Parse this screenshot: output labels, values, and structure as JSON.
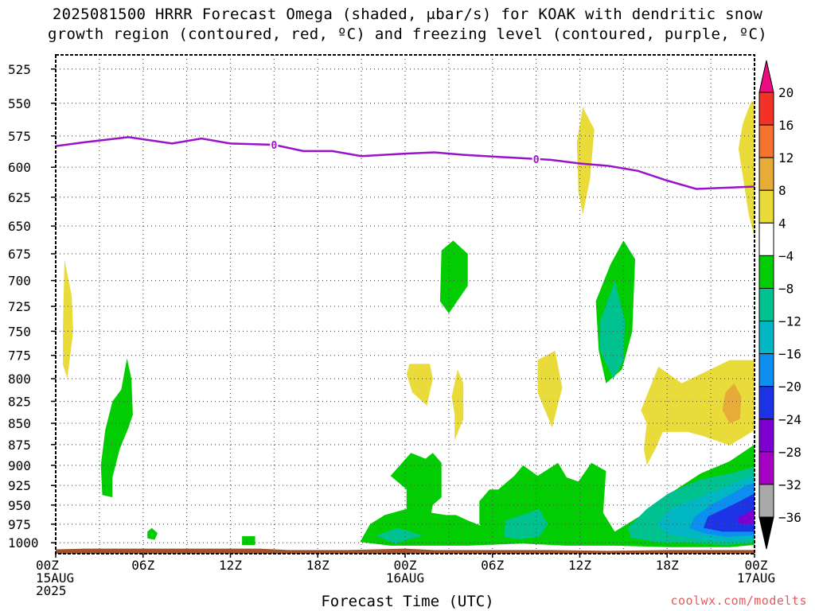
{
  "title_line1": "2025081500 HRRR Forecast Omega (shaded, μbar/s) for KOAK with dendritic snow",
  "title_line2": "growth region (contoured, red, ºC) and freezing level (contoured, purple, ºC)",
  "x_axis_title": "Forecast Time (UTC)",
  "credit": "coolwx.com/modelts",
  "chart_data": {
    "type": "heatmap",
    "title": "2025081500 HRRR Forecast Omega (shaded, μbar/s) for KOAK",
    "xlabel": "Forecast Time (UTC)",
    "ylabel": "",
    "x_range_hours": [
      0,
      48
    ],
    "y_range_hpa": [
      1015,
      515
    ],
    "y_scale": "log-pressure (inverted)",
    "grid": true,
    "y_ticks": [
      525,
      550,
      575,
      600,
      625,
      650,
      675,
      700,
      725,
      750,
      775,
      800,
      825,
      850,
      875,
      900,
      925,
      950,
      975,
      1000
    ],
    "x_ticks": [
      {
        "hour": 0,
        "lines": [
          "00Z",
          "15AUG",
          "2025"
        ]
      },
      {
        "hour": 6,
        "lines": [
          "06Z"
        ]
      },
      {
        "hour": 12,
        "lines": [
          "12Z"
        ]
      },
      {
        "hour": 18,
        "lines": [
          "18Z"
        ]
      },
      {
        "hour": 24,
        "lines": [
          "00Z",
          "16AUG"
        ]
      },
      {
        "hour": 30,
        "lines": [
          "06Z"
        ]
      },
      {
        "hour": 36,
        "lines": [
          "12Z"
        ]
      },
      {
        "hour": 42,
        "lines": [
          "18Z"
        ]
      },
      {
        "hour": 48,
        "lines": [
          "00Z",
          "17AUG"
        ]
      }
    ],
    "colorbar": {
      "labels": [
        "20",
        "16",
        "12",
        "8",
        "4",
        "−4",
        "−8",
        "−12",
        "−16",
        "−20",
        "−24",
        "−28",
        "−32",
        "−36"
      ],
      "colors": [
        "#ee0a7f",
        "#f23226",
        "#f5732e",
        "#e7ac38",
        "#e9dc3a",
        "#ffffff",
        "#02cd02",
        "#00c190",
        "#00b7c3",
        "#0d8ef1",
        "#1d33e6",
        "#7d00d0",
        "#a600c4",
        "#a9a9a9",
        "#000000"
      ]
    },
    "freezing_level": {
      "label": "0",
      "color": "#9a13c9",
      "points": [
        [
          0,
          583
        ],
        [
          2,
          580
        ],
        [
          5,
          576
        ],
        [
          8,
          581
        ],
        [
          10,
          577
        ],
        [
          12,
          581
        ],
        [
          15,
          582
        ],
        [
          17,
          587
        ],
        [
          19,
          587
        ],
        [
          21,
          591
        ],
        [
          24,
          589
        ],
        [
          26,
          588
        ],
        [
          28,
          590
        ],
        [
          31,
          592
        ],
        [
          34,
          594
        ],
        [
          36,
          597
        ],
        [
          38,
          599
        ],
        [
          40,
          603
        ],
        [
          42,
          611
        ],
        [
          44,
          618
        ],
        [
          46,
          617
        ],
        [
          48,
          616
        ]
      ],
      "label_hours": [
        15,
        33
      ]
    },
    "omega_regions": [
      {
        "level": 4,
        "color": "#e9dc3a",
        "points": [
          [
            0.6,
            680
          ],
          [
            1.1,
            715
          ],
          [
            1.2,
            750
          ],
          [
            0.8,
            800
          ],
          [
            0.5,
            785
          ],
          [
            0.5,
            745
          ]
        ]
      },
      {
        "level": 4,
        "color": "#e9dc3a",
        "points": [
          [
            36.2,
            553
          ],
          [
            37.0,
            570
          ],
          [
            36.7,
            610
          ],
          [
            36.2,
            640
          ],
          [
            35.9,
            620
          ],
          [
            35.8,
            580
          ]
        ]
      },
      {
        "level": 4,
        "color": "#e9dc3a",
        "points": [
          [
            47.8,
            548
          ],
          [
            48,
            552
          ],
          [
            48,
            660
          ],
          [
            47.6,
            640
          ],
          [
            46.9,
            585
          ],
          [
            47.2,
            565
          ]
        ]
      },
      {
        "level": 4,
        "color": "#e9dc3a",
        "points": [
          [
            34.3,
            770
          ],
          [
            34.8,
            810
          ],
          [
            34.1,
            855
          ],
          [
            33.1,
            815
          ],
          [
            33.1,
            780
          ]
        ]
      },
      {
        "level": 4,
        "color": "#e9dc3a",
        "points": [
          [
            24.3,
            784
          ],
          [
            25.7,
            784
          ],
          [
            25.9,
            800
          ],
          [
            25.5,
            830
          ],
          [
            24.5,
            815
          ],
          [
            24.1,
            795
          ]
        ]
      },
      {
        "level": 4,
        "color": "#e9dc3a",
        "points": [
          [
            27.6,
            790
          ],
          [
            28.0,
            805
          ],
          [
            28.0,
            845
          ],
          [
            27.4,
            870
          ],
          [
            27.4,
            840
          ],
          [
            27.2,
            820
          ]
        ]
      },
      {
        "level": 4,
        "color": "#e9dc3a",
        "points": [
          [
            41.4,
            787
          ],
          [
            43.0,
            805
          ],
          [
            44.3,
            795
          ],
          [
            46.3,
            780
          ],
          [
            48,
            780
          ],
          [
            48,
            858
          ],
          [
            46.3,
            876
          ],
          [
            44.5,
            865
          ],
          [
            43.4,
            860
          ],
          [
            42.2,
            860
          ],
          [
            41.7,
            860
          ],
          [
            41.2,
            880
          ],
          [
            40.6,
            900
          ],
          [
            40.4,
            880
          ],
          [
            40.6,
            850
          ],
          [
            40.2,
            835
          ]
        ]
      },
      {
        "level": 8,
        "color": "#e7ac38",
        "points": [
          [
            46.6,
            805
          ],
          [
            47.1,
            820
          ],
          [
            47.0,
            845
          ],
          [
            46.3,
            850
          ],
          [
            45.8,
            835
          ],
          [
            46.0,
            815
          ]
        ]
      },
      {
        "level": -4,
        "color": "#02cd02",
        "points": [
          [
            4.9,
            778
          ],
          [
            5.2,
            800
          ],
          [
            5.3,
            840
          ],
          [
            5.0,
            855
          ],
          [
            4.4,
            880
          ],
          [
            3.9,
            915
          ],
          [
            3.9,
            940
          ],
          [
            3.2,
            937
          ],
          [
            3.1,
            900
          ],
          [
            3.4,
            858
          ],
          [
            3.9,
            825
          ],
          [
            4.5,
            812
          ]
        ]
      },
      {
        "level": -4,
        "color": "#02cd02",
        "points": [
          [
            27.3,
            663
          ],
          [
            28.3,
            675
          ],
          [
            28.3,
            705
          ],
          [
            27.0,
            732
          ],
          [
            26.4,
            720
          ],
          [
            26.5,
            672
          ]
        ]
      },
      {
        "level": -4,
        "color": "#02cd02",
        "points": [
          [
            39.0,
            663
          ],
          [
            39.8,
            680
          ],
          [
            39.6,
            750
          ],
          [
            38.9,
            790
          ],
          [
            37.8,
            805
          ],
          [
            37.3,
            770
          ],
          [
            37.1,
            720
          ],
          [
            38.1,
            685
          ]
        ]
      },
      {
        "level": -4,
        "color": "#02cd02",
        "points": [
          [
            6.6,
            980
          ],
          [
            7.0,
            987
          ],
          [
            6.8,
            996
          ],
          [
            6.3,
            994
          ],
          [
            6.3,
            985
          ]
        ]
      },
      {
        "level": -4,
        "color": "#02cd02",
        "points": [
          [
            12.8,
            991
          ],
          [
            13.7,
            991
          ],
          [
            13.7,
            1003
          ],
          [
            12.8,
            1003
          ]
        ]
      },
      {
        "level": -4,
        "color": "#02cd02",
        "points": [
          [
            48,
            875
          ],
          [
            48,
            1003
          ],
          [
            46.3,
            1006
          ],
          [
            42.1,
            1006
          ],
          [
            38.4,
            1004
          ],
          [
            35.0,
            1004
          ],
          [
            32.1,
            1001
          ],
          [
            28.3,
            1004
          ],
          [
            25.7,
            1004
          ],
          [
            23.0,
            1004
          ],
          [
            20.9,
            999
          ],
          [
            21.6,
            975
          ],
          [
            22.6,
            963
          ],
          [
            24.1,
            955
          ],
          [
            24.1,
            930
          ],
          [
            23.0,
            913
          ],
          [
            24.4,
            885
          ],
          [
            25.4,
            892
          ],
          [
            25.9,
            885
          ],
          [
            26.5,
            897
          ],
          [
            26.5,
            940
          ],
          [
            25.9,
            950
          ],
          [
            25.8,
            960
          ],
          [
            26.8,
            963
          ],
          [
            27.5,
            963
          ],
          [
            28.3,
            970
          ],
          [
            29.2,
            977
          ],
          [
            29.1,
            975
          ],
          [
            29.1,
            945
          ],
          [
            29.8,
            930
          ],
          [
            30.4,
            930
          ],
          [
            31.5,
            913
          ],
          [
            32.1,
            900
          ],
          [
            33.1,
            913
          ],
          [
            34.5,
            897
          ],
          [
            35.1,
            915
          ],
          [
            35.9,
            920
          ],
          [
            36.8,
            897
          ],
          [
            37.8,
            907
          ],
          [
            37.6,
            960
          ],
          [
            38.4,
            985
          ],
          [
            40.5,
            960
          ],
          [
            42.2,
            935
          ],
          [
            44.3,
            910
          ],
          [
            46.3,
            895
          ]
        ]
      },
      {
        "level": -8,
        "color": "#00c190",
        "points": [
          [
            38.4,
            700
          ],
          [
            39.1,
            740
          ],
          [
            39.0,
            780
          ],
          [
            38.3,
            800
          ],
          [
            37.4,
            770
          ],
          [
            37.4,
            740
          ]
        ]
      },
      {
        "level": -8,
        "color": "#00c190",
        "points": [
          [
            22.0,
            990
          ],
          [
            23.5,
            980
          ],
          [
            25.2,
            990
          ],
          [
            23.3,
            1001
          ]
        ]
      },
      {
        "level": -8,
        "color": "#00c190",
        "points": [
          [
            33.2,
            955
          ],
          [
            33.8,
            975
          ],
          [
            33.2,
            992
          ],
          [
            31.8,
            995
          ],
          [
            30.8,
            992
          ],
          [
            30.9,
            970
          ]
        ]
      },
      {
        "level": -8,
        "color": "#00c190",
        "points": [
          [
            48,
            902
          ],
          [
            48,
            1000
          ],
          [
            46.0,
            1003
          ],
          [
            43.5,
            1000
          ],
          [
            41.5,
            1000
          ],
          [
            39.5,
            993
          ],
          [
            39.3,
            980
          ],
          [
            40.6,
            955
          ],
          [
            42.1,
            935
          ],
          [
            44.2,
            918
          ],
          [
            46.3,
            910
          ]
        ]
      },
      {
        "level": -12,
        "color": "#00b7c3",
        "points": [
          [
            48,
            913
          ],
          [
            48,
            995
          ],
          [
            46.0,
            998
          ],
          [
            43.5,
            993
          ],
          [
            42.0,
            988
          ],
          [
            41.3,
            975
          ],
          [
            42.2,
            955
          ],
          [
            43.5,
            945
          ],
          [
            44.9,
            935
          ],
          [
            47.1,
            918
          ]
        ]
      },
      {
        "level": -16,
        "color": "#0d8ef1",
        "points": [
          [
            48,
            922
          ],
          [
            48,
            990
          ],
          [
            46.0,
            992
          ],
          [
            44.5,
            987
          ],
          [
            43.5,
            980
          ],
          [
            43.9,
            965
          ],
          [
            45.0,
            950
          ],
          [
            46.5,
            935
          ],
          [
            47.4,
            925
          ]
        ]
      },
      {
        "level": -20,
        "color": "#1d33e6",
        "points": [
          [
            48,
            935
          ],
          [
            48,
            985
          ],
          [
            45.8,
            985
          ],
          [
            44.5,
            980
          ],
          [
            44.8,
            965
          ],
          [
            45.9,
            955
          ],
          [
            47.0,
            945
          ]
        ]
      },
      {
        "level": -24,
        "color": "#7d00d0",
        "points": [
          [
            48,
            955
          ],
          [
            48,
            975
          ],
          [
            47.0,
            975
          ],
          [
            46.8,
            968
          ],
          [
            47.3,
            962
          ]
        ]
      }
    ]
  }
}
